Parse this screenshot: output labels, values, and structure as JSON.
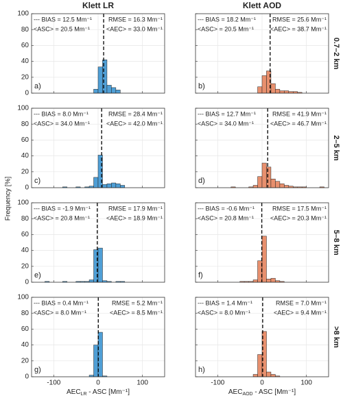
{
  "ylabel": "Frequency [%]",
  "chart_data": [
    {
      "type": "histogram",
      "title": "Klett LR",
      "panel_label": "a)",
      "color": "#4f9fd6",
      "bins": [
        -10,
        0,
        10,
        20,
        30,
        40,
        50
      ],
      "counts": [
        5,
        33,
        42,
        10,
        7,
        4
      ],
      "bias": 12.5,
      "annotations": [
        "--- BIAS = 12.5 Mm⁻¹",
        "<ASC> = 20.5 Mm⁻¹",
        "RMSE = 16.3 Mm⁻¹",
        "<AEC> = 33.0 Mm⁻¹"
      ],
      "xlim": [
        -150,
        150
      ],
      "xticks": [
        -100,
        0,
        100
      ],
      "ylim": [
        0,
        100
      ],
      "yticks": [
        0,
        20,
        40,
        60,
        80,
        100
      ],
      "grid": true
    },
    {
      "type": "histogram",
      "title": "Klett AOD",
      "row_label": "0.7–2 km",
      "panel_label": "b)",
      "color": "#e8906e",
      "bins": [
        -10,
        0,
        10,
        20,
        30,
        40,
        50,
        60,
        70,
        80,
        90
      ],
      "counts": [
        8,
        22,
        28,
        12,
        5,
        3,
        3,
        2,
        2,
        1
      ],
      "bias": 18.2,
      "annotations": [
        "--- BIAS = 18.2 Mm⁻¹",
        "<ASC> = 20.5 Mm⁻¹",
        "RMSE = 25.6 Mm⁻¹",
        "<AEC> = 38.7 Mm⁻¹"
      ],
      "xlim": [
        -150,
        150
      ],
      "xticks": [
        -100,
        0,
        100
      ],
      "ylim": [
        0,
        100
      ],
      "yticks": [
        0,
        20,
        40,
        60,
        80,
        100
      ],
      "grid": true
    },
    {
      "type": "histogram",
      "panel_label": "c)",
      "color": "#4f9fd6",
      "bins": [
        -80,
        -70,
        -60,
        -50,
        -40,
        -30,
        -20,
        -10,
        0,
        10,
        20,
        30,
        40,
        50,
        60
      ],
      "counts": [
        1,
        0,
        0,
        1,
        0,
        1,
        2,
        13,
        41,
        4,
        5,
        6,
        5,
        3
      ],
      "bias": 8.0,
      "annotations": [
        "--- BIAS = 8.0 Mm⁻¹",
        "<ASC> = 34.0 Mm⁻¹",
        "RMSE = 28.4 Mm⁻¹",
        "<AEC> = 42.0 Mm⁻¹"
      ],
      "xlim": [
        -150,
        150
      ],
      "xticks": [
        -100,
        0,
        100
      ],
      "ylim": [
        0,
        100
      ],
      "yticks": [
        0,
        20,
        40,
        60,
        80,
        100
      ],
      "grid": true
    },
    {
      "type": "histogram",
      "row_label": "2–5 km",
      "panel_label": "d)",
      "color": "#e8906e",
      "bins": [
        -70,
        -60,
        -50,
        -40,
        -30,
        -20,
        -10,
        0,
        10,
        20,
        30,
        40,
        50,
        60,
        70,
        80,
        90,
        100,
        110,
        120,
        130,
        140
      ],
      "counts": [
        1,
        0,
        0,
        0,
        1,
        3,
        14,
        31,
        26,
        11,
        8,
        5,
        3,
        2,
        1,
        1,
        1,
        0,
        0,
        0,
        1
      ],
      "bias": 12.7,
      "annotations": [
        "--- BIAS = 12.7 Mm⁻¹",
        "<ASC> = 34.0 Mm⁻¹",
        "RMSE = 41.9 Mm⁻¹",
        "<AEC> = 46.7 Mm⁻¹"
      ],
      "xlim": [
        -150,
        150
      ],
      "xticks": [
        -100,
        0,
        100
      ],
      "ylim": [
        0,
        100
      ],
      "yticks": [
        0,
        20,
        40,
        60,
        80,
        100
      ],
      "grid": true
    },
    {
      "type": "histogram",
      "panel_label": "e)",
      "color": "#4f9fd6",
      "bins": [
        -120,
        -110,
        -100,
        -90,
        -80,
        -70,
        -60,
        -50,
        -40,
        -30,
        -20,
        -10,
        0,
        10,
        20,
        30,
        40,
        50,
        60
      ],
      "counts": [
        1,
        0,
        0,
        0,
        1,
        0,
        0,
        1,
        1,
        1,
        3,
        41,
        43,
        2,
        1,
        0,
        1,
        1
      ],
      "bias": -1.9,
      "annotations": [
        "--- BIAS = -1.9 Mm⁻¹",
        "<ASC> = 20.8 Mm⁻¹",
        "RMSE = 17.9 Mm⁻¹",
        "<AEC> = 18.9 Mm⁻¹"
      ],
      "xlim": [
        -150,
        150
      ],
      "xticks": [
        -100,
        0,
        100
      ],
      "ylim": [
        0,
        100
      ],
      "yticks": [
        0,
        20,
        40,
        60,
        80,
        100
      ],
      "grid": true
    },
    {
      "type": "histogram",
      "row_label": "5–8 km",
      "panel_label": "f)",
      "color": "#e8906e",
      "bins": [
        -50,
        -40,
        -30,
        -20,
        -10,
        0,
        10,
        20,
        30,
        40,
        50
      ],
      "counts": [
        1,
        1,
        1,
        3,
        27,
        58,
        4,
        5,
        2,
        1
      ],
      "bias": -0.6,
      "annotations": [
        "--- BIAS = -0.6 Mm⁻¹",
        "<ASC> = 20.8 Mm⁻¹",
        "RMSE = 17.5 Mm⁻¹",
        "<AEC> = 20.3 Mm⁻¹"
      ],
      "xlim": [
        -150,
        150
      ],
      "xticks": [
        -100,
        0,
        100
      ],
      "ylim": [
        0,
        100
      ],
      "yticks": [
        0,
        20,
        40,
        60,
        80,
        100
      ],
      "grid": true
    },
    {
      "type": "histogram",
      "panel_label": "g)",
      "color": "#4f9fd6",
      "bins": [
        -20,
        -10,
        0,
        10,
        20
      ],
      "counts": [
        2,
        40,
        56,
        1
      ],
      "bias": 0.4,
      "annotations": [
        "--- BIAS = 0.4 Mm⁻¹",
        "<ASC> = 8.0 Mm⁻¹",
        "RMSE = 5.2 Mm⁻¹",
        "<AEC> = 8.5 Mm⁻¹"
      ],
      "xlabel": {
        "main": "AEC",
        "sub": "LR",
        "rest": " - ASC [Mm⁻¹]"
      },
      "xlim": [
        -150,
        150
      ],
      "xticks": [
        -100,
        0,
        100
      ],
      "ylim": [
        0,
        100
      ],
      "yticks": [
        0,
        20,
        40,
        60,
        80,
        100
      ],
      "grid": true
    },
    {
      "type": "histogram",
      "row_label": ">8 km",
      "panel_label": "h)",
      "color": "#e8906e",
      "bins": [
        -20,
        -10,
        0,
        10,
        20,
        30,
        40
      ],
      "counts": [
        3,
        28,
        57,
        6,
        3,
        1
      ],
      "bias": 1.4,
      "annotations": [
        "--- BIAS = 1.4 Mm⁻¹",
        "<ASC> = 8.0 Mm⁻¹",
        "RMSE = 7.0 Mm⁻¹",
        "<AEC> = 9.4 Mm⁻¹"
      ],
      "xlabel": {
        "main": "AEC",
        "sub": "AOD",
        "rest": " - ASC [Mm⁻¹]"
      },
      "xlim": [
        -150,
        150
      ],
      "xticks": [
        -100,
        0,
        100
      ],
      "ylim": [
        0,
        100
      ],
      "yticks": [
        0,
        20,
        40,
        60,
        80,
        100
      ],
      "grid": true
    }
  ]
}
